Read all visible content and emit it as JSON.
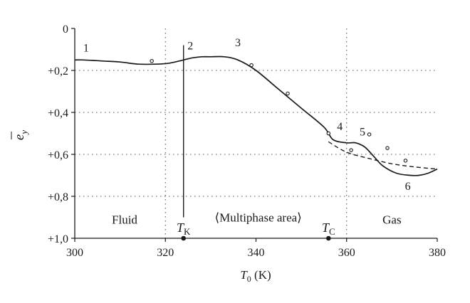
{
  "chart_data": {
    "type": "line",
    "xlabel": "T",
    "xlabel_sub": "0",
    "xlabel_unit": " (K)",
    "ylabel": "e",
    "ylabel_sub": "y",
    "xlim": [
      300,
      380
    ],
    "ylim": [
      0,
      1.0
    ],
    "y_inverted": true,
    "grid": "dotted",
    "x_ticks": [
      {
        "value": 300,
        "label": "300"
      },
      {
        "value": 320,
        "label": "320"
      },
      {
        "value": 340,
        "label": "340"
      },
      {
        "value": 360,
        "label": "360"
      },
      {
        "value": 380,
        "label": "380"
      }
    ],
    "y_ticks": [
      {
        "value": 0,
        "label": "0"
      },
      {
        "value": 0.2,
        "label": "+0,2"
      },
      {
        "value": 0.4,
        "label": "+0,4"
      },
      {
        "value": 0.6,
        "label": "+0,6"
      },
      {
        "value": 0.8,
        "label": "+0,8"
      },
      {
        "value": 1.0,
        "label": "+1,0"
      }
    ],
    "series": [
      {
        "style": "solid",
        "x": [
          300,
          302,
          306,
          310,
          314,
          318,
          321,
          324,
          326,
          328,
          330,
          333,
          336,
          340,
          345,
          350,
          355,
          357,
          360,
          362,
          364,
          366,
          368,
          371,
          374,
          376,
          378,
          380
        ],
        "y": [
          0.15,
          0.15,
          0.155,
          0.16,
          0.17,
          0.17,
          0.165,
          0.15,
          0.14,
          0.135,
          0.135,
          0.135,
          0.15,
          0.2,
          0.29,
          0.38,
          0.47,
          0.53,
          0.545,
          0.545,
          0.565,
          0.61,
          0.655,
          0.69,
          0.7,
          0.7,
          0.69,
          0.67
        ]
      },
      {
        "style": "dashed",
        "x": [
          356,
          360,
          365,
          370,
          375,
          380
        ],
        "y": [
          0.54,
          0.59,
          0.62,
          0.645,
          0.66,
          0.67
        ]
      },
      {
        "style": "markers",
        "x": [
          317,
          339,
          347,
          356,
          361,
          365,
          369,
          373
        ],
        "y": [
          0.155,
          0.175,
          0.31,
          0.5,
          0.58,
          0.505,
          0.57,
          0.63
        ]
      }
    ],
    "vertical_gridlines": [
      320,
      360
    ],
    "vline_TK": {
      "x": 324,
      "y_top": 0.08,
      "y_bottom": 0.9
    },
    "axis_points": [
      324,
      356
    ],
    "curve_labels": [
      {
        "text": "1",
        "x": 302.5,
        "y": 0.11
      },
      {
        "text": "2",
        "x": 325.5,
        "y": 0.1
      },
      {
        "text": "3",
        "x": 336,
        "y": 0.085
      },
      {
        "text": "4",
        "x": 358.5,
        "y": 0.485
      },
      {
        "text": "5",
        "x": 363.5,
        "y": 0.51
      },
      {
        "text": "6",
        "x": 373.5,
        "y": 0.77
      }
    ],
    "region_labels": [
      {
        "text": "Fluid",
        "x": 311,
        "y": 0.91
      },
      {
        "text": "⟨Multiphase area⟩",
        "x": 340.5,
        "y": 0.9
      },
      {
        "text": "Gas",
        "x": 370,
        "y": 0.91
      }
    ],
    "point_labels": [
      {
        "text": "T",
        "sub": "K",
        "x": 324,
        "y": 0.96
      },
      {
        "text": "T",
        "sub": "C",
        "x": 356,
        "y": 0.96
      }
    ]
  }
}
